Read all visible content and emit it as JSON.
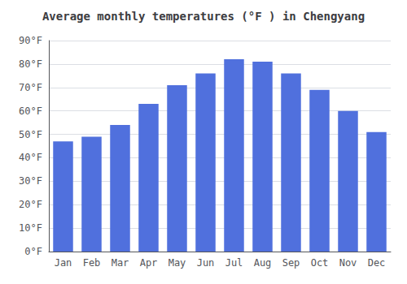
{
  "chart_data": {
    "type": "bar",
    "title": "Average monthly temperatures (°F ) in Chengyang",
    "categories": [
      "Jan",
      "Feb",
      "Mar",
      "Apr",
      "May",
      "Jun",
      "Jul",
      "Aug",
      "Sep",
      "Oct",
      "Nov",
      "Dec"
    ],
    "values": [
      47.0,
      49.0,
      54.0,
      63.0,
      71.0,
      76.0,
      82.0,
      81.0,
      76.0,
      69.0,
      60.0,
      51.0
    ],
    "ylim": [
      0,
      90
    ],
    "yticks": [
      {
        "value": 0,
        "label": "0°F"
      },
      {
        "value": 10,
        "label": "10°F"
      },
      {
        "value": 20,
        "label": "20°F"
      },
      {
        "value": 30,
        "label": "30°F"
      },
      {
        "value": 40,
        "label": "40°F"
      },
      {
        "value": 50,
        "label": "50°F"
      },
      {
        "value": 60,
        "label": "60°F"
      },
      {
        "value": 70,
        "label": "70°F"
      },
      {
        "value": 80,
        "label": "80°F"
      },
      {
        "value": 90,
        "label": "90°F"
      }
    ],
    "grid": true
  }
}
